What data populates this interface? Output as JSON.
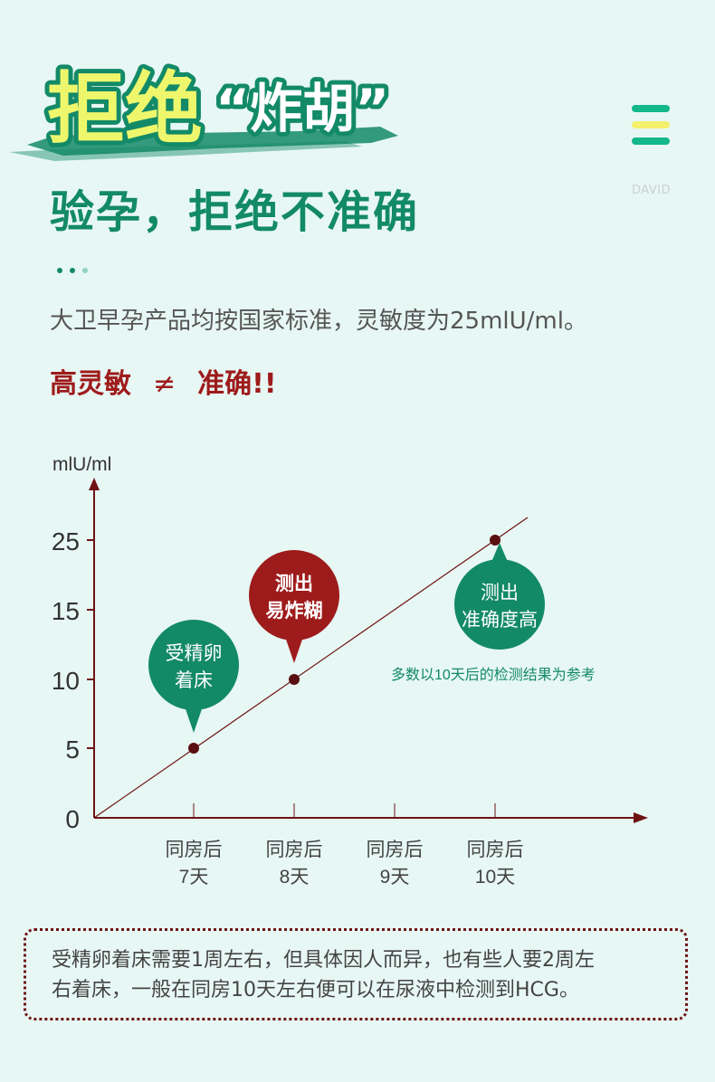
{
  "headline": {
    "main": "拒绝",
    "quote": "“炸胡”"
  },
  "logo": {
    "label": "DAVID",
    "colors": [
      "#13b88a",
      "#f3f16d",
      "#13b88a"
    ]
  },
  "subtitle": "验孕，拒绝不准确",
  "description": "大卫早孕产品均按国家标准，灵敏度为25mlU/ml。",
  "slogan": {
    "left": "高灵敏",
    "symbol": "≠",
    "right": "准确!!"
  },
  "colors": {
    "green": "#138a67",
    "dark_red": "#6e1313",
    "red": "#9e1b1b",
    "headline_yellow": "#eef76c",
    "background": "#e7f7f4"
  },
  "chart_data": {
    "type": "line",
    "y_unit": "mlU/ml",
    "y_ticks": [
      0,
      5,
      10,
      15,
      25
    ],
    "x_tick_lines": [
      [
        "同房后",
        "7天"
      ],
      [
        "同房后",
        "8天"
      ],
      [
        "同房后",
        "9天"
      ],
      [
        "同房后",
        "10天"
      ]
    ],
    "x": [
      7,
      8,
      10
    ],
    "y": [
      5,
      10,
      25
    ],
    "callouts": [
      {
        "lines": [
          "受精卵",
          "着床"
        ],
        "x": 7,
        "y": 5,
        "color": "#138a67"
      },
      {
        "lines": [
          "测出",
          "易炸糊"
        ],
        "x": 8,
        "y": 10,
        "color": "#9e1b1b"
      },
      {
        "lines": [
          "测出",
          "准确度高"
        ],
        "x": 10,
        "y": 25,
        "color": "#138a67"
      }
    ],
    "annotation": "多数以10天后的检测结果为参考"
  },
  "note": {
    "line1": "受精卵着床需要1周左右，但具体因人而异，也有些人要2周左",
    "line2": "右着床，一般在同房10天左右便可以在尿液中检测到HCG。"
  }
}
